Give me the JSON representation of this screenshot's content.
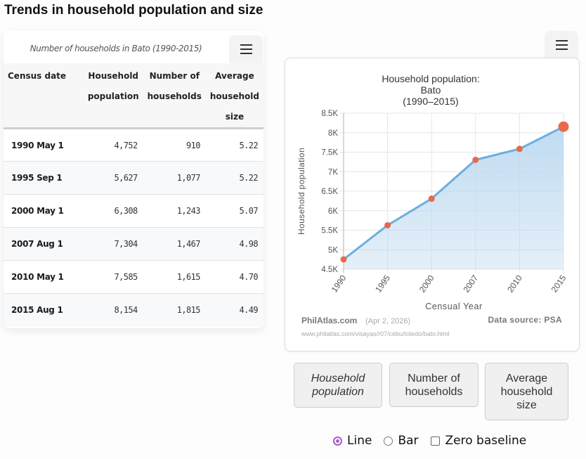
{
  "page": {
    "title": "Trends in household population and size"
  },
  "table": {
    "caption": "Number of households in Bato (1990-2015)",
    "menu_icon": "hamburger-menu-icon",
    "headers": [
      "Census date",
      "Household population",
      "Number of households",
      "Average household size"
    ],
    "header_lines": [
      [
        "Census date"
      ],
      [
        "Household",
        "population"
      ],
      [
        "Number of",
        "households"
      ],
      [
        "Average",
        "household",
        "size"
      ]
    ],
    "rows": [
      {
        "date": "1990 May 1",
        "population": "4,752",
        "households": "910",
        "avg_size": "5.22"
      },
      {
        "date": "1995 Sep 1",
        "population": "5,627",
        "households": "1,077",
        "avg_size": "5.22"
      },
      {
        "date": "2000 May 1",
        "population": "6,308",
        "households": "1,243",
        "avg_size": "5.07"
      },
      {
        "date": "2007 Aug 1",
        "population": "7,304",
        "households": "1,467",
        "avg_size": "4.98"
      },
      {
        "date": "2010 May 1",
        "population": "7,585",
        "households": "1,615",
        "avg_size": "4.70"
      },
      {
        "date": "2015 Aug 1",
        "population": "8,154",
        "households": "1,815",
        "avg_size": "4.49"
      }
    ]
  },
  "chart_menu_icon": "hamburger-menu-icon",
  "chart_data": {
    "type": "area",
    "title_lines": [
      "Household population:",
      "Bato",
      "(1990–2015)"
    ],
    "xlabel": "Censual Year",
    "ylabel": "Household population",
    "categories": [
      "1990",
      "1995",
      "2000",
      "2007",
      "2010",
      "2015"
    ],
    "values": [
      4752,
      5627,
      6308,
      7304,
      7585,
      8154
    ],
    "ylim": [
      4500,
      8500
    ],
    "yticks": [
      4500,
      5000,
      5500,
      6000,
      6500,
      7000,
      7500,
      8000,
      8500
    ],
    "ytick_labels": [
      "4.5K",
      "5K",
      "5.5K",
      "6K",
      "6.5K",
      "7K",
      "7.5K",
      "8K",
      "8.5K"
    ],
    "grid": true,
    "highlight_index": 5,
    "colors": {
      "line": "#6aaee0",
      "fill": "#bcd9f0",
      "marker": "#e8694a",
      "grid": "#e6e6e6"
    },
    "credit": {
      "site": "PhilAtlas.com",
      "date": "(Apr 2, 2026)",
      "source": "Data source: PSA",
      "url": "www.philatlas.com/visayas/r07/cebu/toledo/bato.html"
    }
  },
  "dataset_buttons": [
    {
      "label_lines": [
        "Household",
        "population"
      ],
      "active": true
    },
    {
      "label_lines": [
        "Number of",
        "households"
      ],
      "active": false
    },
    {
      "label_lines": [
        "Average",
        "household",
        "size"
      ],
      "active": false
    }
  ],
  "options": {
    "line_label": "Line",
    "bar_label": "Bar",
    "zero_label": "Zero baseline",
    "selected": "Line",
    "zero_baseline": false,
    "accent": "#b259c9"
  }
}
